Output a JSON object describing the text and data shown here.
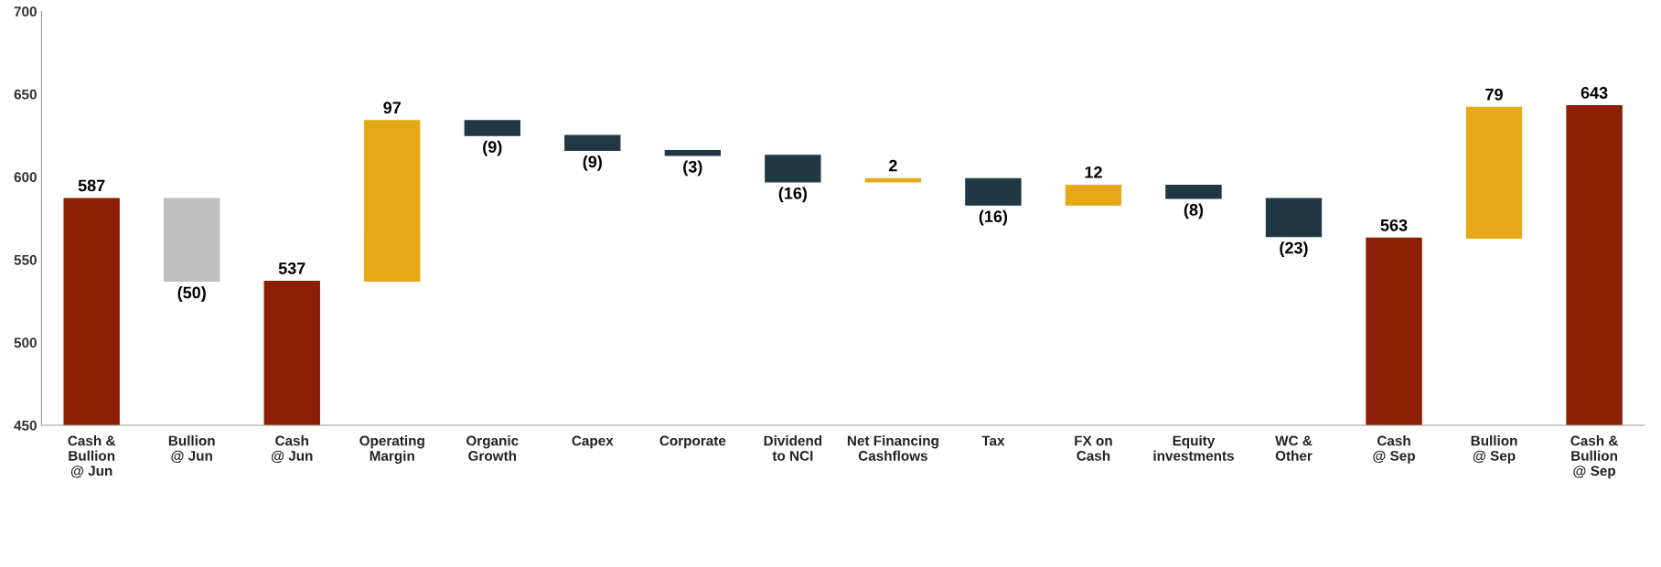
{
  "chart_data": {
    "type": "bar",
    "categories": [
      "Cash &\nBullion\n@ Jun",
      "Bullion\n@ Jun",
      "Cash\n@ Jun",
      "Operating\nMargin",
      "Organic\nGrowth",
      "Capex",
      "Corporate",
      "Dividend\nto NCI",
      "Net Financing\nCashflows",
      "Tax",
      "FX on\nCash",
      "Equity\ninvestments",
      "WC &\nOther",
      "Cash\n@ Sep",
      "Bullion\n@ Sep",
      "Cash &\nBullion\n@ Sep"
    ],
    "values": [
      587,
      -50,
      537,
      97,
      -9,
      -9,
      -3,
      -16,
      2,
      -16,
      12,
      -8,
      -23,
      563,
      79,
      643
    ],
    "base": [
      null,
      587,
      null,
      537,
      634,
      625,
      616,
      613,
      597,
      599,
      583,
      595,
      587,
      null,
      563,
      null
    ],
    "value_labels": [
      "587",
      "(50)",
      "537",
      "97",
      "(9)",
      "(9)",
      "(3)",
      "(16)",
      "2",
      "(16)",
      "12",
      "(8)",
      "(23)",
      "563",
      "79",
      "643"
    ],
    "colors": [
      "#8b1e05",
      "#bfbfbf",
      "#8b1e05",
      "#e6a817",
      "#1f3844",
      "#1f3844",
      "#1f3844",
      "#1f3844",
      "#e6a817",
      "#1f3844",
      "#e6a817",
      "#1f3844",
      "#1f3844",
      "#8b1e05",
      "#e6a817",
      "#8b1e05"
    ],
    "ylim": [
      450,
      700
    ],
    "yticks": [
      450,
      500,
      550,
      600,
      650,
      700
    ],
    "grid": false,
    "legend": false
  }
}
